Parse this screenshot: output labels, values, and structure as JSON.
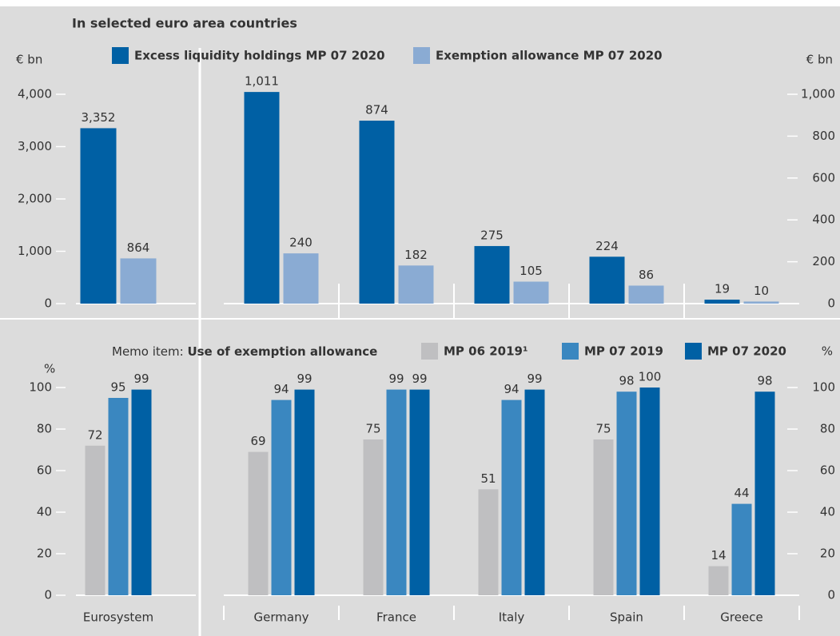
{
  "chart_data": [
    {
      "type": "bar",
      "title": "In selected euro area countries",
      "ylabel": "€ bn",
      "series": [
        {
          "name": "Excess liquidity holdings MP 07 2020",
          "color": "#0060a4",
          "values": [
            3352
          ],
          "value_labels": [
            "3,352"
          ]
        },
        {
          "name": "Exemption allowance MP 07 2020",
          "color": "#8aabd3",
          "values": [
            864
          ],
          "value_labels": [
            "864"
          ]
        }
      ],
      "ylim": [
        0,
        4000
      ],
      "yticks": [
        0,
        {
          "value": 1000,
          "label": "1,000"
        },
        {
          "value": 2000,
          "label": "2,000"
        },
        {
          "value": 3000,
          "label": "3,000"
        },
        {
          "value": 4000,
          "label": "4,000"
        }
      ],
      "y_axis_side": "left"
    },
    {
      "type": "bar",
      "ylabel": "€ bn",
      "series": [
        {
          "color": "#0060a4",
          "values": [
            1011,
            874,
            275,
            224,
            19
          ],
          "value_labels": [
            "1,011",
            "874",
            "275",
            "224",
            "19"
          ]
        },
        {
          "color": "#8aabd3",
          "values": [
            240,
            182,
            105,
            86,
            10
          ]
        }
      ],
      "ylim": [
        0,
        1000
      ],
      "yticks": [
        0,
        200,
        400,
        600,
        800,
        {
          "value": 1000,
          "label": "1,000"
        }
      ],
      "y_axis_side": "right"
    },
    {
      "type": "bar",
      "legend_prefix": "Memo item:",
      "legend_title": "Use of exemption allowance",
      "ylabel": "%",
      "categories": [
        "Eurosystem"
      ],
      "series": [
        {
          "name": "MP 06 2019¹",
          "color": "#bfbfc1",
          "values": [
            72
          ]
        },
        {
          "name": "MP 07 2019",
          "color": "#3a87c0",
          "values": [
            95
          ]
        },
        {
          "name": "MP 07 2020",
          "color": "#0060a4",
          "values": [
            99
          ]
        }
      ],
      "ylim": [
        0,
        100
      ],
      "yticks": [
        0,
        20,
        40,
        60,
        80,
        100
      ],
      "y_axis_side": "left"
    },
    {
      "type": "bar",
      "ylabel": "%",
      "categories": [
        "Germany",
        "France",
        "Italy",
        "Spain",
        "Greece"
      ],
      "series": [
        {
          "color": "#bfbfc1",
          "values": [
            69,
            75,
            51,
            75,
            14
          ]
        },
        {
          "color": "#3a87c0",
          "values": [
            94,
            99,
            94,
            98,
            44
          ]
        },
        {
          "color": "#0060a4",
          "values": [
            99,
            99,
            99,
            100,
            98
          ]
        }
      ],
      "ylim": [
        0,
        100
      ],
      "yticks": [
        0,
        20,
        40,
        60,
        80,
        100
      ],
      "y_axis_side": "right"
    }
  ]
}
